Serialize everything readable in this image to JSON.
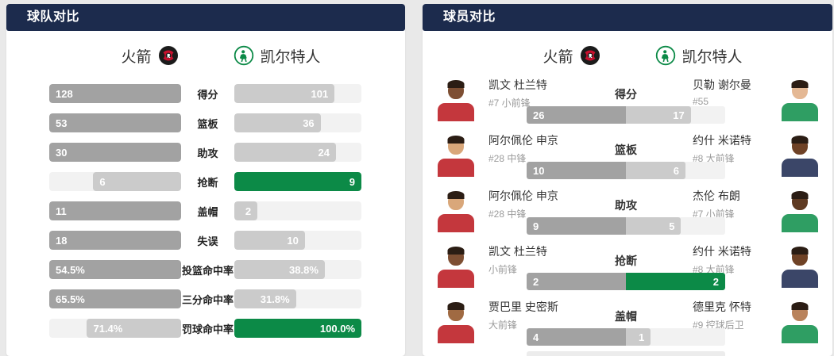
{
  "colors": {
    "panel_header_bg": "#1c2b4d",
    "home_highlight": "#a2a2a2",
    "away_highlight": "#0c8a47",
    "muted_fill": "#cbcbcb",
    "bar_track": "#f2f2f2",
    "home_jersey": "#c4373d",
    "away_jersey_green": "#2f9e63",
    "away_jersey_navy": "#3b4668"
  },
  "icons": {
    "home_logo": "rockets-logo",
    "away_logo": "celtics-logo"
  },
  "teams": {
    "home": {
      "name": "火箭"
    },
    "away": {
      "name": "凯尔特人"
    }
  },
  "team_panel": {
    "title": "球队对比",
    "rows": [
      {
        "stat": "得分",
        "home": "128",
        "away": "101"
      },
      {
        "stat": "篮板",
        "home": "53",
        "away": "36"
      },
      {
        "stat": "助攻",
        "home": "30",
        "away": "24"
      },
      {
        "stat": "抢断",
        "home": "6",
        "away": "9"
      },
      {
        "stat": "盖帽",
        "home": "11",
        "away": "2"
      },
      {
        "stat": "失误",
        "home": "18",
        "away": "10"
      },
      {
        "stat": "投篮命中率",
        "home": "54.5%",
        "away": "38.8%"
      },
      {
        "stat": "三分命中率",
        "home": "65.5%",
        "away": "31.8%"
      },
      {
        "stat": "罚球命中率",
        "home": "71.4%",
        "away": "100.0%"
      }
    ]
  },
  "player_panel": {
    "title": "球员对比",
    "rows": [
      {
        "stat": "得分",
        "home": {
          "name": "凯文 杜兰特",
          "sub": "#7 小前锋",
          "value": "26",
          "jersey": "#c4373d",
          "skin": "#7e4f33"
        },
        "away": {
          "name": "贝勒 谢尔曼",
          "sub": "#55",
          "value": "17",
          "jersey": "#2f9e63",
          "skin": "#e4b894"
        }
      },
      {
        "stat": "篮板",
        "home": {
          "name": "阿尔佩伦 申京",
          "sub": "#28 中锋",
          "value": "10",
          "jersey": "#c4373d",
          "skin": "#d9a77a"
        },
        "away": {
          "name": "约什 米诺特",
          "sub": "#8 大前锋",
          "value": "6",
          "jersey": "#3b4668",
          "skin": "#6f4226"
        }
      },
      {
        "stat": "助攻",
        "home": {
          "name": "阿尔佩伦 申京",
          "sub": "#28 中锋",
          "value": "9",
          "jersey": "#c4373d",
          "skin": "#d9a77a"
        },
        "away": {
          "name": "杰伦 布朗",
          "sub": "#7 小前锋",
          "value": "5",
          "jersey": "#2f9e63",
          "skin": "#5f3a22"
        }
      },
      {
        "stat": "抢断",
        "home": {
          "name": "凯文 杜兰特",
          "sub": "小前锋",
          "value": "2",
          "jersey": "#c4373d",
          "skin": "#7e4f33"
        },
        "away": {
          "name": "约什 米诺特",
          "sub": "#8 大前锋",
          "value": "2",
          "jersey": "#3b4668",
          "skin": "#6f4226"
        }
      },
      {
        "stat": "盖帽",
        "home": {
          "name": "贾巴里 史密斯",
          "sub": "大前锋",
          "value": "4",
          "jersey": "#c4373d",
          "skin": "#a06a42"
        },
        "away": {
          "name": "德里克 怀特",
          "sub": "#9 控球后卫",
          "value": "1",
          "jersey": "#2f9e63",
          "skin": "#b9835c"
        }
      }
    ]
  },
  "chart_data": [
    {
      "type": "bar",
      "title": "球队对比",
      "categories": [
        "得分",
        "篮板",
        "助攻",
        "抢断",
        "盖帽",
        "失误",
        "投篮命中率",
        "三分命中率",
        "罚球命中率"
      ],
      "series": [
        {
          "name": "火箭",
          "values": [
            128,
            53,
            30,
            6,
            11,
            18,
            54.5,
            65.5,
            71.4
          ]
        },
        {
          "name": "凯尔特人",
          "values": [
            101,
            36,
            24,
            9,
            2,
            10,
            38.8,
            31.8,
            100.0
          ]
        }
      ],
      "layout": "mirrored horizontal bars, larger value highlighted (home=gray, away=green)"
    },
    {
      "type": "bar",
      "title": "球员对比",
      "categories": [
        "得分",
        "篮板",
        "助攻",
        "抢断",
        "盖帽"
      ],
      "series": [
        {
          "name": "火箭",
          "values": [
            26,
            10,
            9,
            2,
            4
          ]
        },
        {
          "name": "凯尔特人",
          "values": [
            17,
            6,
            5,
            2,
            1
          ]
        }
      ],
      "layout": "stacked horizontal bar per stat, winner fills half width"
    }
  ]
}
